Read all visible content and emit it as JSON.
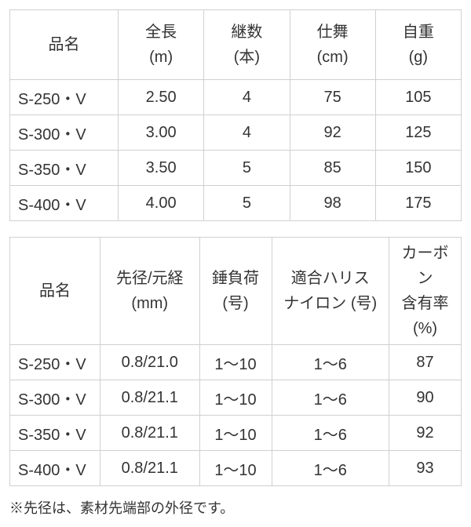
{
  "table1": {
    "columns": [
      {
        "line1": "品名",
        "line2": ""
      },
      {
        "line1": "全長",
        "line2": "(m)"
      },
      {
        "line1": "継数",
        "line2": "(本)"
      },
      {
        "line1": "仕舞",
        "line2": "(cm)"
      },
      {
        "line1": "自重",
        "line2": "(g)"
      }
    ],
    "rows": [
      [
        "S-250・V",
        "2.50",
        "4",
        "75",
        "105"
      ],
      [
        "S-300・V",
        "3.00",
        "4",
        "92",
        "125"
      ],
      [
        "S-350・V",
        "3.50",
        "5",
        "85",
        "150"
      ],
      [
        "S-400・V",
        "4.00",
        "5",
        "98",
        "175"
      ]
    ],
    "col_widths": [
      "24%",
      "19%",
      "19%",
      "19%",
      "19%"
    ]
  },
  "table2": {
    "columns": [
      {
        "line1": "品名",
        "line2": ""
      },
      {
        "line1": "先径/元経",
        "line2": "(mm)"
      },
      {
        "line1": "錘負荷",
        "line2": "(号)"
      },
      {
        "line1": "適合ハリス",
        "line2": "ナイロン (号)"
      },
      {
        "line1": "カーボン",
        "line2": "含有率",
        "line3": "(%)"
      }
    ],
    "rows": [
      [
        "S-250・V",
        "0.8/21.0",
        "1～10",
        "1～6",
        "87"
      ],
      [
        "S-300・V",
        "0.8/21.1",
        "1～10",
        "1～6",
        "90"
      ],
      [
        "S-350・V",
        "0.8/21.1",
        "1～10",
        "1～6",
        "92"
      ],
      [
        "S-400・V",
        "0.8/21.1",
        "1～10",
        "1～6",
        "93"
      ]
    ],
    "col_widths": [
      "20%",
      "22%",
      "16%",
      "26%",
      "16%"
    ]
  },
  "note": "※先径は、素材先端部の外径です。",
  "colors": {
    "border": "#d0d0d0",
    "text": "#333333",
    "background": "#ffffff"
  }
}
